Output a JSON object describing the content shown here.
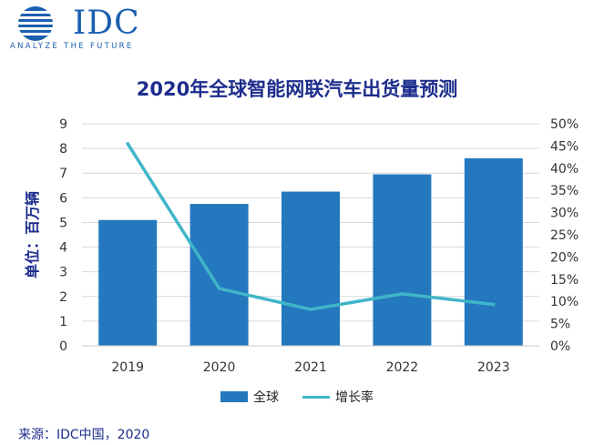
{
  "logo": {
    "brand": "IDC",
    "tagline": "ANALYZE THE FUTURE",
    "brand_color": "#1a5fb0"
  },
  "chart_data": {
    "type": "bar",
    "title": "2020年全球智能网联汽车出货量预测",
    "ylabel": "单位：百万辆",
    "categories": [
      "2019",
      "2020",
      "2021",
      "2022",
      "2023"
    ],
    "ylim": [
      0,
      9
    ],
    "y_ticks": [
      "0",
      "1",
      "2",
      "3",
      "4",
      "5",
      "6",
      "7",
      "8",
      "9"
    ],
    "y2lim": [
      0,
      50
    ],
    "y2_ticks": [
      "0%",
      "5%",
      "10%",
      "15%",
      "20%",
      "25%",
      "30%",
      "35%",
      "40%",
      "45%",
      "50%"
    ],
    "grid": true,
    "legend_position": "bottom",
    "series": [
      {
        "name": "全球",
        "type": "bar",
        "axis": "left",
        "color": "#2478be",
        "values": [
          5.1,
          5.75,
          6.25,
          6.95,
          7.6
        ]
      },
      {
        "name": "增长率",
        "type": "line",
        "axis": "right",
        "color": "#40b5c9",
        "values": [
          45.5,
          12.9,
          8.2,
          11.7,
          9.3
        ]
      }
    ]
  },
  "source": "来源：IDC中国，2020"
}
